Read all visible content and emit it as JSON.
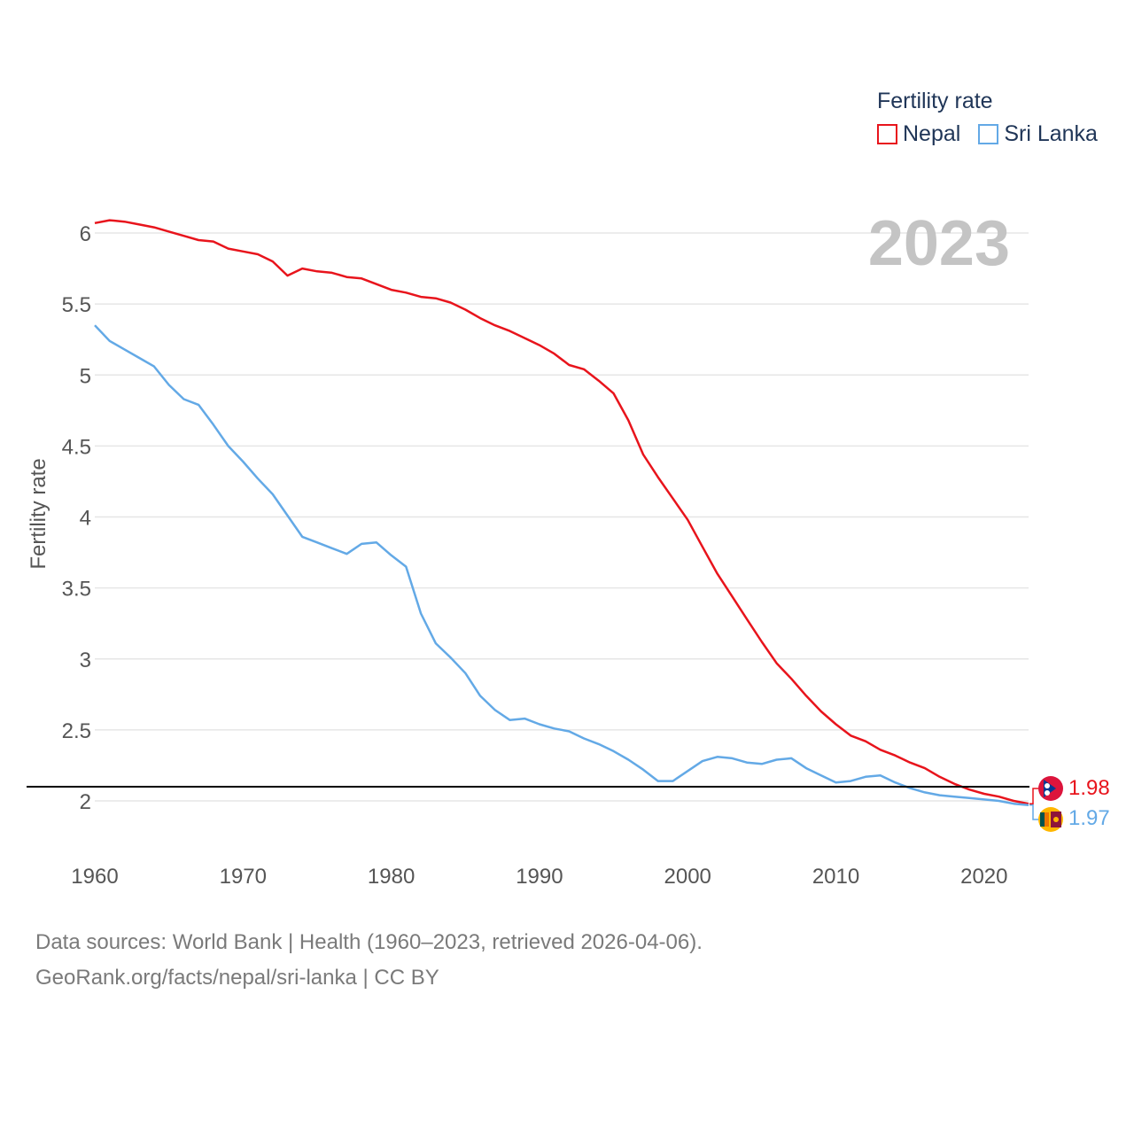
{
  "legend": {
    "title": "Fertility rate",
    "items": [
      {
        "label": "Nepal",
        "color": "#e8141c"
      },
      {
        "label": "Sri Lanka",
        "color": "#63a9e6"
      }
    ]
  },
  "year_label": "2023",
  "footer": {
    "line1": "Data sources: World Bank | Health (1960–2023, retrieved 2026-04-06).",
    "line2": "GeoRank.org/facts/nepal/sri-lanka | CC BY"
  },
  "chart_data": {
    "type": "line",
    "ylabel": "Fertility rate",
    "xlabel": "",
    "xlim": [
      1960,
      2023
    ],
    "ylim": [
      1.75,
      6.2
    ],
    "x_ticks": [
      "1960",
      "1970",
      "1980",
      "1990",
      "2000",
      "2010",
      "2020"
    ],
    "y_ticks": [
      "2",
      "2.5",
      "3",
      "3.5",
      "4",
      "4.5",
      "5",
      "5.5",
      "6"
    ],
    "reference_line": 2.1,
    "x": [
      1960,
      1961,
      1962,
      1963,
      1964,
      1965,
      1966,
      1967,
      1968,
      1969,
      1970,
      1971,
      1972,
      1973,
      1974,
      1975,
      1976,
      1977,
      1978,
      1979,
      1980,
      1981,
      1982,
      1983,
      1984,
      1985,
      1986,
      1987,
      1988,
      1989,
      1990,
      1991,
      1992,
      1993,
      1994,
      1995,
      1996,
      1997,
      1998,
      1999,
      2000,
      2001,
      2002,
      2003,
      2004,
      2005,
      2006,
      2007,
      2008,
      2009,
      2010,
      2011,
      2012,
      2013,
      2014,
      2015,
      2016,
      2017,
      2018,
      2019,
      2020,
      2021,
      2022,
      2023
    ],
    "series": [
      {
        "name": "Nepal",
        "color": "#e8141c",
        "end_label": "1.98",
        "values": [
          6.07,
          6.09,
          6.08,
          6.06,
          6.04,
          6.01,
          5.98,
          5.95,
          5.94,
          5.89,
          5.87,
          5.85,
          5.8,
          5.7,
          5.75,
          5.73,
          5.72,
          5.69,
          5.68,
          5.64,
          5.6,
          5.58,
          5.55,
          5.54,
          5.51,
          5.46,
          5.4,
          5.35,
          5.31,
          5.26,
          5.21,
          5.15,
          5.07,
          5.04,
          4.96,
          4.87,
          4.68,
          4.44,
          4.28,
          4.13,
          3.98,
          3.79,
          3.6,
          3.44,
          3.28,
          3.12,
          2.97,
          2.86,
          2.74,
          2.63,
          2.54,
          2.46,
          2.42,
          2.36,
          2.32,
          2.27,
          2.23,
          2.17,
          2.12,
          2.08,
          2.05,
          2.03,
          2.0,
          1.98
        ]
      },
      {
        "name": "Sri Lanka",
        "color": "#63a9e6",
        "end_label": "1.97",
        "values": [
          5.35,
          5.24,
          5.18,
          5.12,
          5.06,
          4.93,
          4.83,
          4.79,
          4.65,
          4.5,
          4.39,
          4.27,
          4.16,
          4.01,
          3.86,
          3.82,
          3.78,
          3.74,
          3.81,
          3.82,
          3.73,
          3.65,
          3.32,
          3.11,
          3.01,
          2.9,
          2.74,
          2.64,
          2.57,
          2.58,
          2.54,
          2.51,
          2.49,
          2.44,
          2.4,
          2.35,
          2.29,
          2.22,
          2.14,
          2.14,
          2.21,
          2.28,
          2.31,
          2.3,
          2.27,
          2.26,
          2.29,
          2.3,
          2.23,
          2.18,
          2.13,
          2.14,
          2.17,
          2.18,
          2.13,
          2.09,
          2.06,
          2.04,
          2.03,
          2.02,
          2.01,
          2.0,
          1.98,
          1.97
        ]
      }
    ]
  }
}
